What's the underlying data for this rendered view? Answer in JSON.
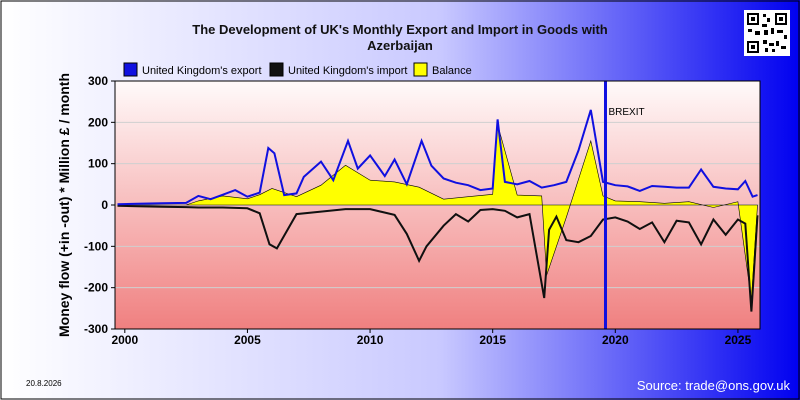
{
  "chart_data": {
    "type": "line",
    "title_lines": [
      "The Development of UK's Monthly Export and Import in Goods with",
      "Azerbaijan"
    ],
    "ylabel": "Money flow (+in -out) * Million £ / month",
    "xlabel": "",
    "ylim": [
      -300,
      300
    ],
    "xlim": [
      1999.6,
      2025.9
    ],
    "yticks": [
      300,
      200,
      100,
      0,
      -100,
      -200,
      -300
    ],
    "xticks": [
      2000,
      2005,
      2010,
      2015,
      2020,
      2025
    ],
    "grid": "horizontal",
    "legend_position": "top",
    "date_label": "20.8.2026",
    "source_label": "Source: trade@ons.gov.uk",
    "annotation": {
      "label": "BREXIT",
      "x": 2019.6
    },
    "series": [
      {
        "name": "United Kingdom's export",
        "color": "#1010e0",
        "x": [
          1999.7,
          2000.5,
          2001.5,
          2002.5,
          2003.0,
          2003.5,
          2004.0,
          2004.5,
          2005.0,
          2005.5,
          2005.85,
          2006.1,
          2006.5,
          2007.0,
          2007.3,
          2008.0,
          2008.5,
          2009.1,
          2009.5,
          2010.0,
          2010.6,
          2011.0,
          2011.5,
          2012.1,
          2012.3,
          2012.5,
          2013.0,
          2013.5,
          2014.0,
          2014.5,
          2015.0,
          2015.2,
          2015.5,
          2016.0,
          2016.5,
          2017.0,
          2017.5,
          2018.0,
          2018.5,
          2019.0,
          2019.5,
          2020.0,
          2020.5,
          2021.0,
          2021.5,
          2022.0,
          2022.5,
          2023.0,
          2023.5,
          2024.0,
          2024.5,
          2025.0,
          2025.3,
          2025.6,
          2025.8
        ],
        "y": [
          2,
          3,
          4,
          5,
          22,
          14,
          25,
          36,
          20,
          30,
          138,
          125,
          24,
          28,
          68,
          105,
          60,
          155,
          88,
          120,
          70,
          110,
          50,
          155,
          125,
          95,
          64,
          54,
          48,
          36,
          40,
          207,
          56,
          50,
          58,
          42,
          48,
          56,
          132,
          230,
          56,
          48,
          45,
          34,
          46,
          44,
          42,
          42,
          86,
          44,
          40,
          38,
          58,
          20,
          24
        ]
      },
      {
        "name": "United Kingdom's import",
        "color": "#101010",
        "x": [
          1999.7,
          2000.5,
          2001.5,
          2002.5,
          2003.0,
          2004.0,
          2005.0,
          2005.5,
          2005.9,
          2006.2,
          2007.0,
          2008.0,
          2009.0,
          2010.0,
          2011.0,
          2011.5,
          2012.0,
          2012.3,
          2013.0,
          2013.5,
          2014.0,
          2014.5,
          2015.0,
          2015.5,
          2016.0,
          2016.5,
          2017.1,
          2017.3,
          2017.6,
          2018.0,
          2018.5,
          2019.0,
          2019.5,
          2020.0,
          2020.5,
          2021.0,
          2021.5,
          2022.0,
          2022.5,
          2023.0,
          2023.5,
          2024.0,
          2024.5,
          2025.0,
          2025.3,
          2025.55,
          2025.8
        ],
        "y": [
          -2,
          -3,
          -4,
          -5,
          -6,
          -6,
          -8,
          -20,
          -95,
          -105,
          -22,
          -16,
          -10,
          -10,
          -24,
          -70,
          -135,
          -100,
          -50,
          -22,
          -40,
          -12,
          -10,
          -14,
          -30,
          -22,
          -225,
          -60,
          -28,
          -85,
          -90,
          -75,
          -35,
          -30,
          -40,
          -58,
          -42,
          -90,
          -38,
          -42,
          -95,
          -35,
          -72,
          -35,
          -45,
          -258,
          -25
        ]
      },
      {
        "name": "Balance",
        "color": "#ffff00",
        "x": [
          1999.7,
          2000.5,
          2001.5,
          2002.5,
          2003.0,
          2004.0,
          2005.0,
          2005.5,
          2006.0,
          2007.0,
          2008.0,
          2009.0,
          2010.0,
          2011.0,
          2012.0,
          2013.0,
          2014.0,
          2015.0,
          2015.2,
          2016.0,
          2017.0,
          2017.2,
          2018.0,
          2019.0,
          2019.5,
          2020.0,
          2021.0,
          2022.0,
          2023.0,
          2024.0,
          2025.0,
          2025.55,
          2025.8
        ],
        "y": [
          0,
          0,
          0,
          0,
          10,
          22,
          15,
          25,
          40,
          20,
          48,
          96,
          60,
          56,
          43,
          14,
          20,
          26,
          195,
          24,
          22,
          -170,
          -30,
          155,
          22,
          10,
          8,
          4,
          8,
          -6,
          8,
          -230,
          0
        ]
      }
    ]
  }
}
